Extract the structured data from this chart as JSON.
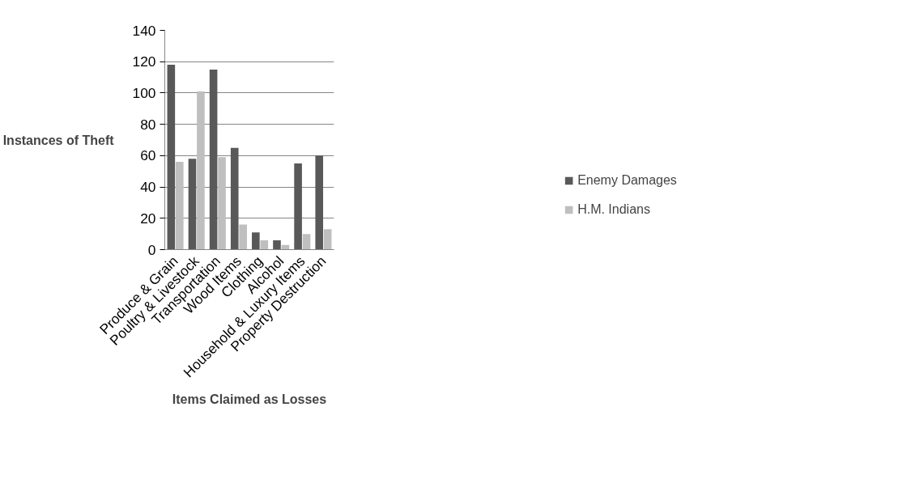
{
  "chart_data": {
    "type": "bar",
    "xlabel": "Items Claimed as Losses",
    "ylabel": "Instances of Theft",
    "categories": [
      "Produce & Grain",
      "Poultry & Livestock",
      "Transportation",
      "Wood Items",
      "Clothing",
      "Alcohol",
      "Household & Luxury Items",
      "Property Destruction"
    ],
    "series": [
      {
        "name": "Enemy Damages",
        "color": "#595959",
        "values": [
          118,
          58,
          115,
          65,
          11,
          6,
          55,
          60
        ]
      },
      {
        "name": "H.M. Indians",
        "color": "#bfbfbf",
        "values": [
          56,
          101,
          59,
          16,
          6,
          3,
          10,
          13
        ]
      }
    ],
    "ylim": [
      0,
      140
    ],
    "yticks": [
      0,
      20,
      40,
      60,
      80,
      100,
      120,
      140
    ],
    "grid": "y",
    "legend": "bottom right"
  }
}
